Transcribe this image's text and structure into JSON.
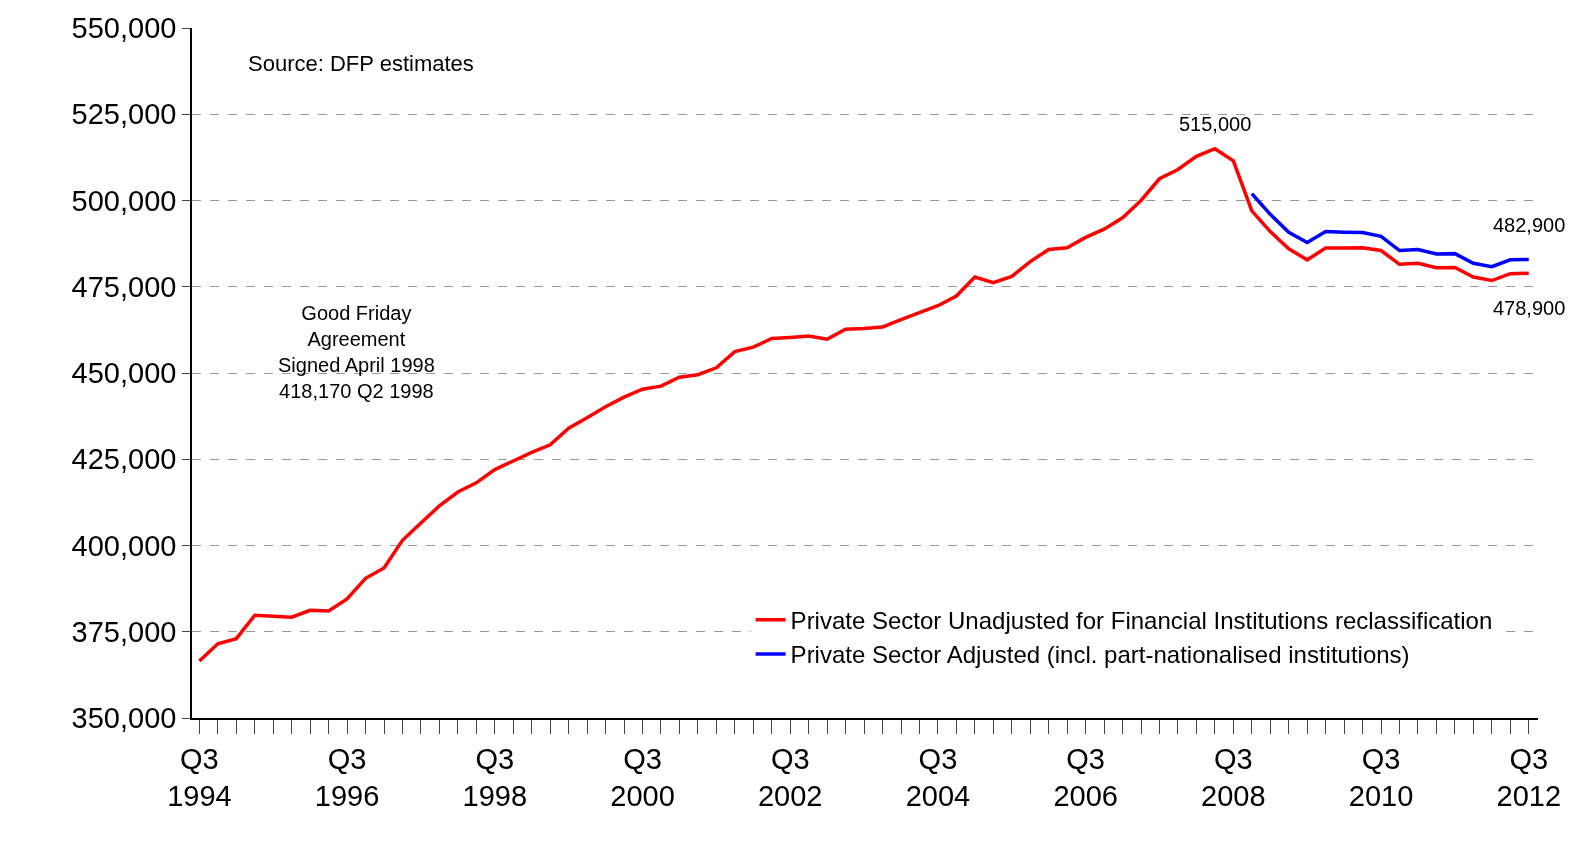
{
  "chart_data": {
    "type": "line",
    "categories": [
      "Q3\n1994",
      null,
      null,
      null,
      null,
      null,
      null,
      null,
      "Q3\n1996",
      null,
      null,
      null,
      null,
      null,
      null,
      null,
      "Q3\n1998",
      null,
      null,
      null,
      null,
      null,
      null,
      null,
      "Q3\n2000",
      null,
      null,
      null,
      null,
      null,
      null,
      null,
      "Q3\n2002",
      null,
      null,
      null,
      null,
      null,
      null,
      null,
      "Q3\n2004",
      null,
      null,
      null,
      null,
      null,
      null,
      null,
      "Q3\n2006",
      null,
      null,
      null,
      null,
      null,
      null,
      null,
      "Q3\n2008",
      null,
      null,
      null,
      null,
      null,
      null,
      null,
      "Q3\n2010",
      null,
      null,
      null,
      null,
      null,
      null,
      null,
      "Q3\n2012"
    ],
    "series": [
      {
        "name": "Private Sector Unadjusted for Financial Institutions reclassification",
        "color": "#ff0000",
        "values": [
          366500,
          371500,
          373000,
          379800,
          379500,
          379200,
          381200,
          381000,
          384500,
          390500,
          393500,
          401500,
          406500,
          411500,
          415500,
          418170,
          422000,
          424500,
          427000,
          429200,
          434000,
          437000,
          440200,
          443000,
          445300,
          446200,
          448800,
          449500,
          451500,
          456200,
          457500,
          460000,
          460300,
          460700,
          459800,
          462700,
          462900,
          463300,
          465500,
          467500,
          469500,
          472300,
          477800,
          476200,
          478000,
          482300,
          485800,
          486300,
          489300,
          491700,
          495000,
          500000,
          506300,
          509000,
          512800,
          515000,
          511500,
          497000,
          491000,
          486000,
          482800,
          486200,
          486200,
          486300,
          485500,
          481500,
          481800,
          480500,
          480600,
          477800,
          476800,
          478800,
          478900
        ]
      },
      {
        "name": "Private Sector Adjusted (incl. part-nationalised institutions)",
        "color": "#0000ff",
        "values": [
          null,
          null,
          null,
          null,
          null,
          null,
          null,
          null,
          null,
          null,
          null,
          null,
          null,
          null,
          null,
          null,
          null,
          null,
          null,
          null,
          null,
          null,
          null,
          null,
          null,
          null,
          null,
          null,
          null,
          null,
          null,
          null,
          null,
          null,
          null,
          null,
          null,
          null,
          null,
          null,
          null,
          null,
          null,
          null,
          null,
          null,
          null,
          null,
          null,
          null,
          null,
          null,
          null,
          null,
          null,
          null,
          null,
          502000,
          496000,
          490800,
          487800,
          491000,
          490800,
          490700,
          489600,
          485500,
          485800,
          484500,
          484600,
          481800,
          480800,
          482800,
          482900
        ]
      }
    ],
    "ylim": [
      350000,
      550000
    ],
    "yticks": [
      {
        "value": 350000,
        "label": "350,000"
      },
      {
        "value": 375000,
        "label": "375,000"
      },
      {
        "value": 400000,
        "label": "400,000"
      },
      {
        "value": 425000,
        "label": "425,000"
      },
      {
        "value": 450000,
        "label": "450,000"
      },
      {
        "value": 475000,
        "label": "475,000"
      },
      {
        "value": 500000,
        "label": "500,000"
      },
      {
        "value": 525000,
        "label": "525,000"
      },
      {
        "value": 550000,
        "label": "550,000"
      }
    ],
    "grid": "y",
    "legend": "bottom right",
    "annotations": [
      "Source: DFP estimates",
      "Good Friday\nAgreement\nSigned April 1998\n418,170 Q2 1998",
      "515,000",
      "482,900",
      "478,900"
    ]
  }
}
